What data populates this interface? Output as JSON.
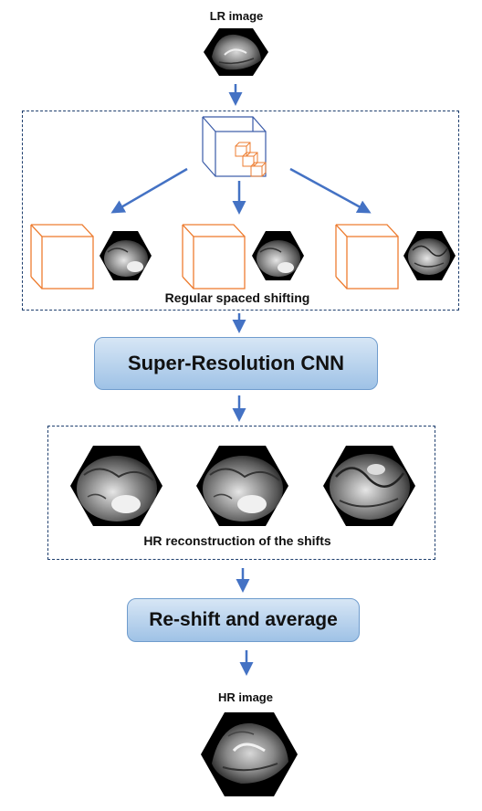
{
  "labels": {
    "lr_image": "LR image",
    "regular_shifting": "Regular spaced shifting",
    "hr_shifts": "HR reconstruction of the shifts",
    "hr_image": "HR image"
  },
  "steps": {
    "cnn": "Super-Resolution CNN",
    "reshift": "Re-shift and average"
  },
  "colors": {
    "arrow": "#4472c4",
    "cube_blue": "#3a5ba8",
    "cube_orange": "#ed7d31",
    "dashed_border": "#1f3f6e",
    "box_fill_top": "#d7e6f5",
    "box_fill_bottom": "#9fc2e6"
  }
}
